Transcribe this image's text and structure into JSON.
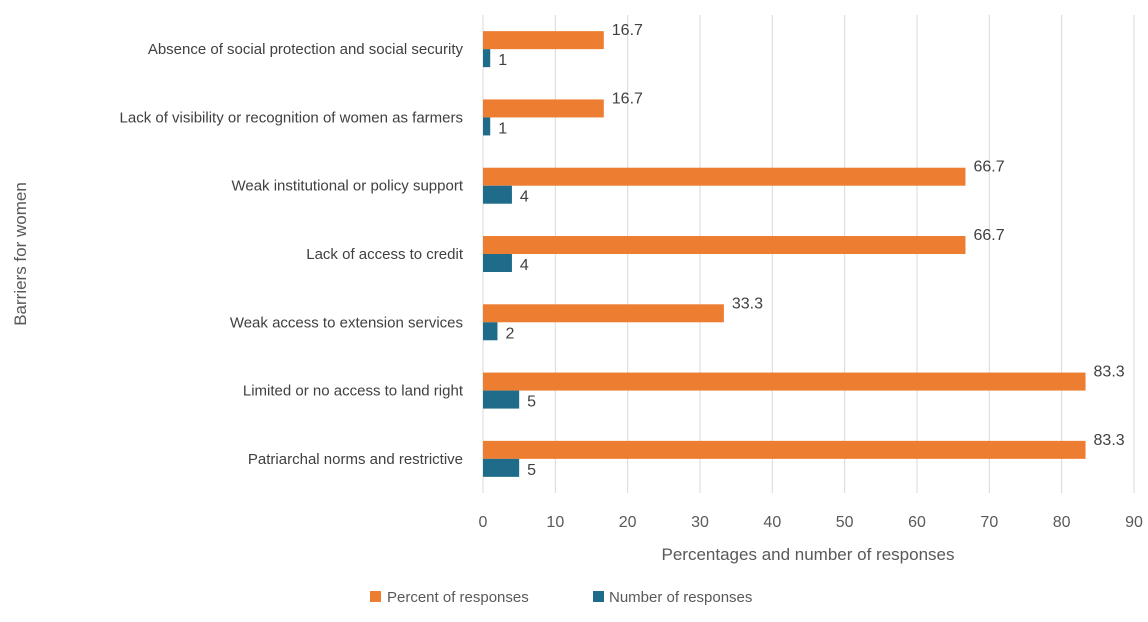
{
  "chart_data": {
    "type": "bar",
    "orientation": "horizontal",
    "title": "",
    "xlabel": "Percentages and number of responses",
    "ylabel": "Barriers for women",
    "xlim": [
      0,
      90
    ],
    "xticks": [
      0,
      10,
      20,
      30,
      40,
      50,
      60,
      70,
      80,
      90
    ],
    "grid": true,
    "legend_position": "bottom",
    "categories": [
      "Absence of social protection and social security",
      "Lack of visibility or recognition of women as farmers",
      "Weak institutional or policy support",
      "Lack of access to credit",
      "Weak access to extension services",
      "Limited or no access to land right",
      "Patriarchal norms and restrictive"
    ],
    "series": [
      {
        "name": "Percent of responses",
        "color": "#ed7d31",
        "values": [
          16.7,
          16.7,
          66.7,
          66.7,
          33.3,
          83.3,
          83.3
        ],
        "labels": [
          "16.7",
          "16.7",
          "66.7",
          "66.7",
          "33.3",
          "83.3",
          "83.3"
        ]
      },
      {
        "name": "Number of responses",
        "color": "#1f6b8a",
        "values": [
          1,
          1,
          4,
          4,
          2,
          5,
          5
        ],
        "labels": [
          "1",
          "1",
          "4",
          "4",
          "2",
          "5",
          "5"
        ]
      }
    ]
  }
}
